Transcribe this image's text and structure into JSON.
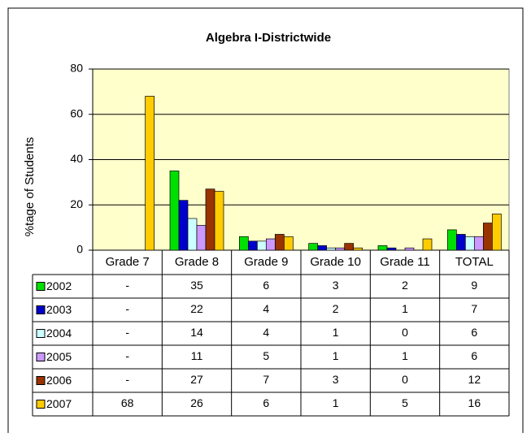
{
  "chart_data": {
    "type": "bar",
    "title": "Algebra I-Districtwide",
    "y_label": "%tage of Students",
    "categories": [
      "Grade 7",
      "Grade 8",
      "Grade 9",
      "Grade 10",
      "Grade 11",
      "TOTAL"
    ],
    "series": [
      {
        "name": "2002",
        "color": "#00e000",
        "values": [
          null,
          35,
          6,
          3,
          2,
          9
        ],
        "value_labels": [
          "-",
          "35",
          "6",
          "3",
          "2",
          "9"
        ]
      },
      {
        "name": "2003",
        "color": "#0000cc",
        "values": [
          null,
          22,
          4,
          2,
          1,
          7
        ],
        "value_labels": [
          "-",
          "22",
          "4",
          "2",
          "1",
          "7"
        ]
      },
      {
        "name": "2004",
        "color": "#ccffff",
        "values": [
          null,
          14,
          4,
          1,
          0,
          6
        ],
        "value_labels": [
          "-",
          "14",
          "4",
          "1",
          "0",
          "6"
        ]
      },
      {
        "name": "2005",
        "color": "#cc99ff",
        "values": [
          null,
          11,
          5,
          1,
          1,
          6
        ],
        "value_labels": [
          "-",
          "11",
          "5",
          "1",
          "1",
          "6"
        ]
      },
      {
        "name": "2006",
        "color": "#993300",
        "values": [
          null,
          27,
          7,
          3,
          0,
          12
        ],
        "value_labels": [
          "-",
          "27",
          "7",
          "3",
          "0",
          "12"
        ]
      },
      {
        "name": "2007",
        "color": "#ffcc00",
        "values": [
          68,
          26,
          6,
          1,
          5,
          16
        ]
      }
    ],
    "ylim": [
      0,
      80
    ],
    "yticks": [
      0,
      20,
      40,
      60,
      80
    ],
    "grid": true,
    "plot_background": "#ffffcc"
  }
}
